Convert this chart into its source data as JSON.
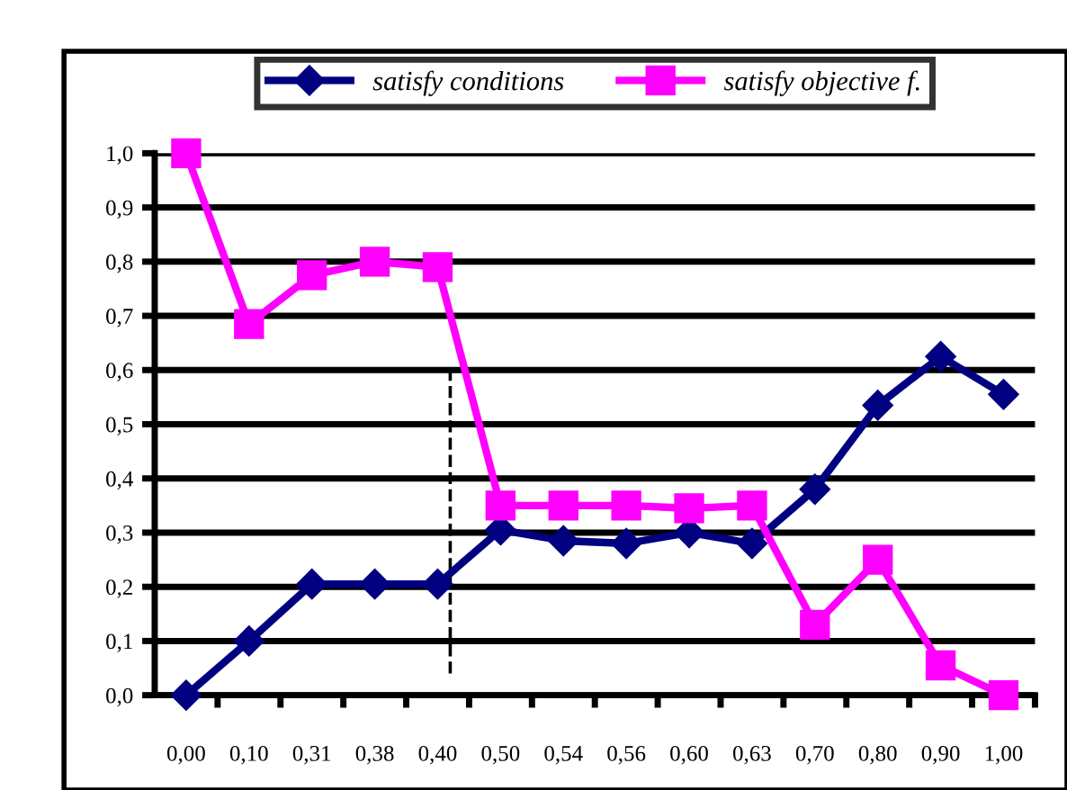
{
  "chart_data": {
    "type": "line",
    "categories": [
      "0,00",
      "0,10",
      "0,31",
      "0,38",
      "0,40",
      "0,50",
      "0,54",
      "0,56",
      "0,60",
      "0,63",
      "0,70",
      "0,80",
      "0,90",
      "1,00"
    ],
    "series": [
      {
        "name": "satisfy conditions",
        "color": "#000080",
        "marker": "diamond",
        "values": [
          0.0,
          0.1,
          0.205,
          0.205,
          0.205,
          0.305,
          0.285,
          0.28,
          0.3,
          0.28,
          0.38,
          0.535,
          0.625,
          0.555
        ]
      },
      {
        "name": "satisfy objective f.",
        "color": "#ff00ff",
        "marker": "square",
        "values": [
          1.0,
          0.685,
          0.775,
          0.8,
          0.79,
          0.35,
          0.35,
          0.35,
          0.345,
          0.35,
          0.13,
          0.25,
          0.055,
          0.0
        ]
      }
    ],
    "ylim": [
      0,
      1.0
    ],
    "yticks": [
      {
        "value": 0,
        "label": "0,0"
      },
      {
        "value": 0.1,
        "label": "0,1"
      },
      {
        "value": 0.2,
        "label": "0,2"
      },
      {
        "value": 0.3,
        "label": "0,3"
      },
      {
        "value": 0.4,
        "label": "0,4"
      },
      {
        "value": 0.5,
        "label": "0,5"
      },
      {
        "value": 0.6,
        "label": "0,6"
      },
      {
        "value": 0.7,
        "label": "0,7"
      },
      {
        "value": 0.8,
        "label": "0,8"
      },
      {
        "value": 0.9,
        "label": "0,9"
      },
      {
        "value": 1.0,
        "label": "1,0"
      }
    ],
    "grid": "y",
    "legend": "top",
    "line_style": "solid",
    "ref_lines": [
      {
        "axis": "x",
        "value": "0,40",
        "color": "#000000",
        "line_style": "dashed"
      }
    ]
  }
}
